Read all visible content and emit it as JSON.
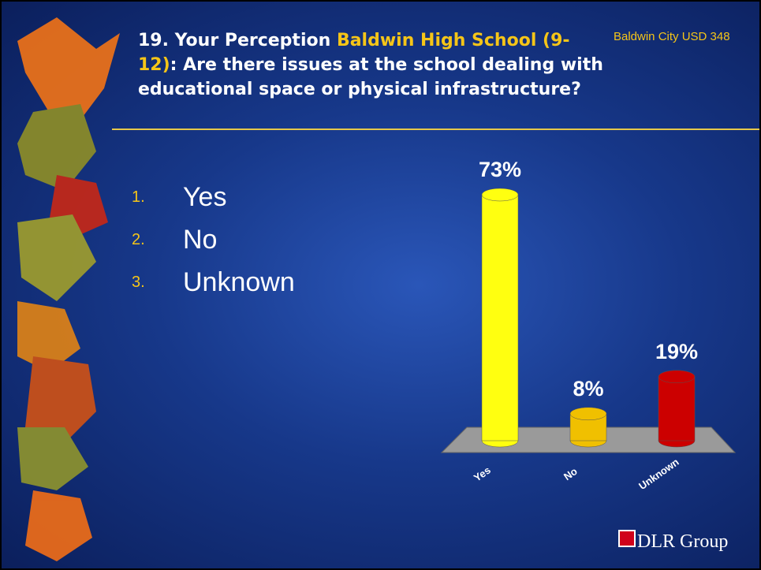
{
  "header": {
    "title_parts": [
      "19. Your Perception ",
      "Baldwin High School (9-12)",
      ": Are there issues at the school dealing with educational space or physical infrastructure?"
    ],
    "org": "Baldwin City USD 348"
  },
  "options": [
    {
      "number": "1.",
      "label": "Yes"
    },
    {
      "number": "2.",
      "label": "No"
    },
    {
      "number": "3.",
      "label": "Unknown"
    }
  ],
  "logo": "DLR Group",
  "chart_data": {
    "type": "bar",
    "categories": [
      "Yes",
      "No",
      "Unknown"
    ],
    "values": [
      73,
      8,
      19
    ],
    "value_labels": [
      "73%",
      "8%",
      "19%"
    ],
    "colors": [
      "#ffff10",
      "#f0c000",
      "#cc0000"
    ]
  }
}
